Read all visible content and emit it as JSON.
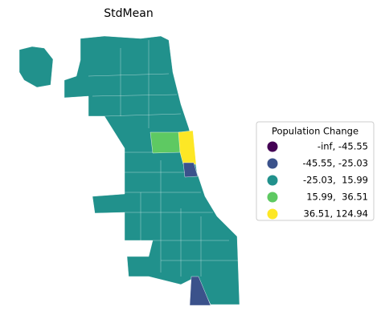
{
  "title": "StdMean",
  "legend": {
    "title": "Population Change",
    "items": [
      {
        "label": "-inf, -45.55",
        "color": "#440154"
      },
      {
        "label": "-45.55, -25.03",
        "color": "#3b528b"
      },
      {
        "label": "-25.03,  15.99",
        "color": "#21918c"
      },
      {
        "label": "15.99,  36.51",
        "color": "#5ec962"
      },
      {
        "label": "36.51, 124.94",
        "color": "#fde725"
      }
    ]
  }
}
